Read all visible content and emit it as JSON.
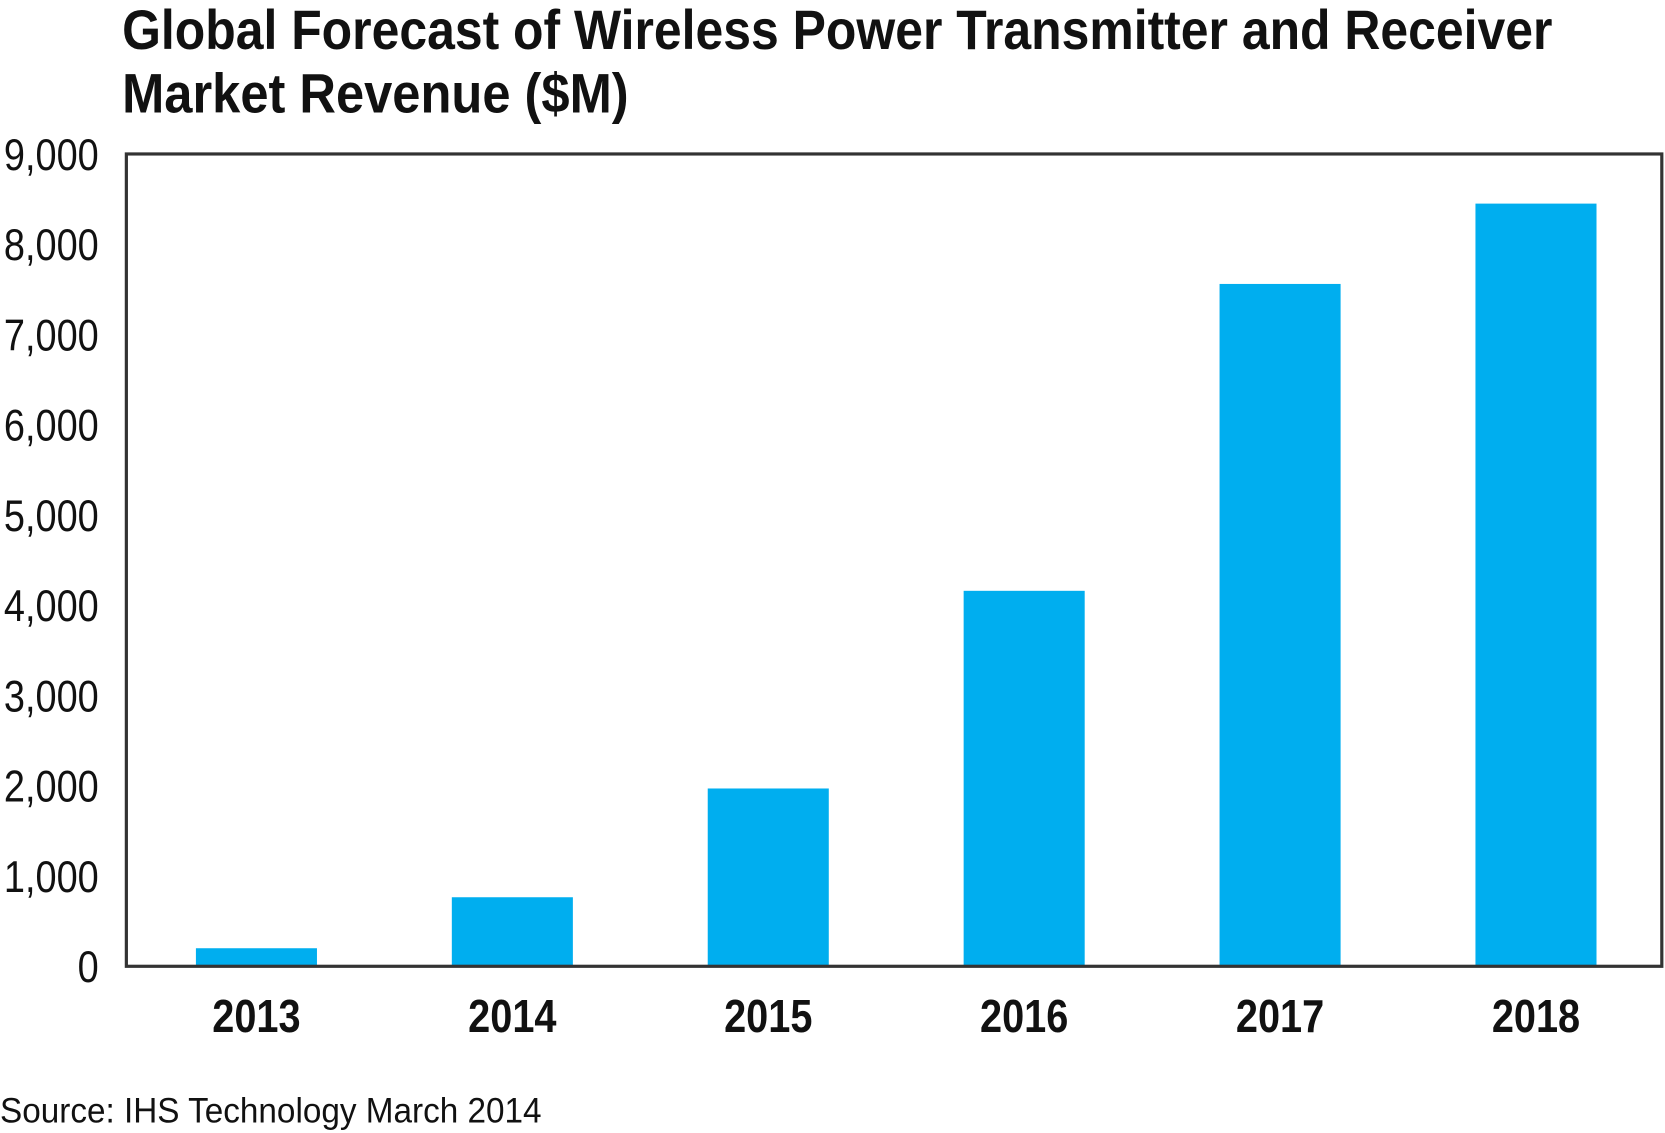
{
  "chart_data": {
    "type": "bar",
    "title": "Global Forecast of Wireless Power Transmitter and Receiver Market Revenue ($M)",
    "title_lines": [
      "Global Forecast of Wireless Power Transmitter and Receiver",
      "Market Revenue ($M)"
    ],
    "categories": [
      "2013",
      "2014",
      "2015",
      "2016",
      "2017",
      "2018"
    ],
    "values": [
      200,
      765,
      1970,
      4160,
      7560,
      8450
    ],
    "xlabel": "",
    "ylabel": "",
    "ylim": [
      0,
      9000
    ],
    "yticks": [
      0,
      1000,
      2000,
      3000,
      4000,
      5000,
      6000,
      7000,
      8000,
      9000
    ],
    "ytick_labels": [
      "0",
      "1,000",
      "2,000",
      "3,000",
      "4,000",
      "5,000",
      "6,000",
      "7,000",
      "8,000",
      "9,000"
    ],
    "grid": false,
    "bar_color": "#00AEEF",
    "source": "Source: IHS Technology March 2014"
  }
}
